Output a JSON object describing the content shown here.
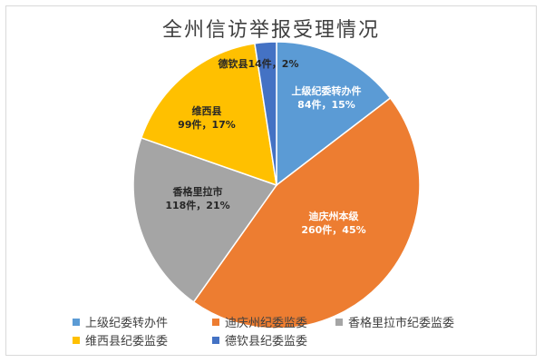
{
  "chart_data": {
    "type": "pie",
    "title": "全州信访举报受理情况",
    "slices": [
      {
        "name": "上级纪委转办件",
        "label_name": "上级纪委转办件",
        "label_value": "84件，15%",
        "value": 84,
        "percent": 15,
        "color": "#5b9bd5"
      },
      {
        "name": "迪庆州纪委监委",
        "label_name": "迪庆州本级",
        "label_value": "260件，45%",
        "value": 260,
        "percent": 45,
        "color": "#ed7d31"
      },
      {
        "name": "香格里拉市纪委监委",
        "label_name": "香格里拉市",
        "label_value": "118件，21%",
        "value": 118,
        "percent": 21,
        "color": "#a5a5a5"
      },
      {
        "name": "维西县纪委监委",
        "label_name": "维西县",
        "label_value": "99件，17%",
        "value": 99,
        "percent": 17,
        "color": "#ffc000"
      },
      {
        "name": "德钦县纪委监委",
        "label_name": "德钦县",
        "label_value": "14件，2%",
        "value": 14,
        "percent": 2,
        "color": "#4472c4"
      }
    ],
    "legend_position": "bottom"
  }
}
